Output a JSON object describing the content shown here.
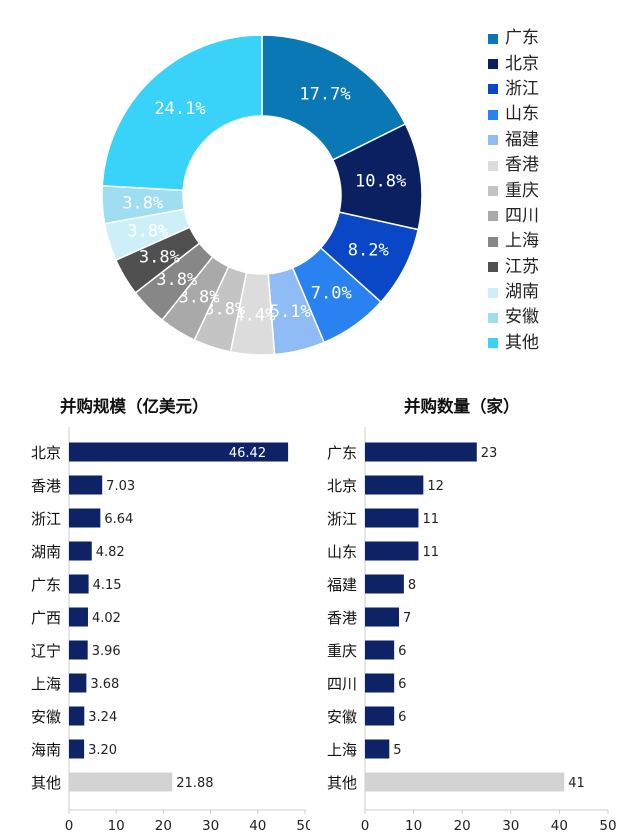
{
  "chart_data": [
    {
      "type": "pie",
      "donut": true,
      "categories": [
        "广东",
        "北京",
        "浙江",
        "山东",
        "福建",
        "香港",
        "重庆",
        "四川",
        "上海",
        "江苏",
        "湖南",
        "安徽",
        "其他"
      ],
      "values": [
        17.7,
        10.8,
        8.2,
        7.0,
        5.1,
        4.4,
        3.8,
        3.8,
        3.8,
        3.8,
        3.8,
        3.8,
        24.1
      ],
      "labels": [
        "17.7%",
        "10.8%",
        "8.2%",
        "7.0%",
        "5.1%",
        "4.4%",
        "3.8%",
        "3.8%",
        "3.8%",
        "3.8%",
        "3.8%",
        "3.8%",
        "24.1%"
      ],
      "colors": [
        "#0b78b6",
        "#0a2060",
        "#0a47c6",
        "#2a82f0",
        "#8fbcf5",
        "#dcdcdc",
        "#c4c4c4",
        "#a9a9a9",
        "#878787",
        "#505050",
        "#cdf0f8",
        "#9fdef0",
        "#39d2f8"
      ],
      "legend": "right"
    },
    {
      "type": "bar",
      "orientation": "horizontal",
      "title": "并购规模（亿美元）",
      "categories": [
        "北京",
        "香港",
        "浙江",
        "湖南",
        "广东",
        "广西",
        "辽宁",
        "上海",
        "安徽",
        "海南",
        "其他"
      ],
      "values": [
        46.42,
        7.03,
        6.64,
        4.82,
        4.15,
        4.02,
        3.96,
        3.68,
        3.24,
        3.2,
        21.88
      ],
      "value_labels": [
        "46.42",
        "7.03",
        "6.64",
        "4.82",
        "4.15",
        "4.02",
        "3.96",
        "3.68",
        "3.24",
        "3.20",
        "21.88"
      ],
      "xlim": [
        0,
        50
      ],
      "xticks": [
        "0",
        "10",
        "20",
        "30",
        "40",
        "50"
      ],
      "bar_color": "#0d2366",
      "other_color": "#d3d3d3"
    },
    {
      "type": "bar",
      "orientation": "horizontal",
      "title": "并购数量（家）",
      "categories": [
        "广东",
        "北京",
        "浙江",
        "山东",
        "福建",
        "香港",
        "重庆",
        "四川",
        "安徽",
        "上海",
        "其他"
      ],
      "values": [
        23,
        12,
        11,
        11,
        8,
        7,
        6,
        6,
        6,
        5,
        41
      ],
      "value_labels": [
        "23",
        "12",
        "11",
        "11",
        "8",
        "7",
        "6",
        "6",
        "6",
        "5",
        "41"
      ],
      "xlim": [
        0,
        50
      ],
      "xticks": [
        "0",
        "10",
        "20",
        "30",
        "40",
        "50"
      ],
      "bar_color": "#0d2366",
      "other_color": "#d3d3d3"
    }
  ]
}
